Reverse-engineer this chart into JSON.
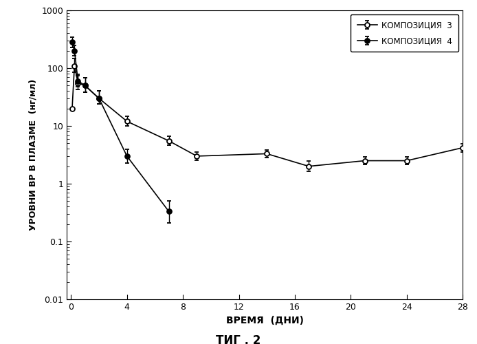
{
  "title": "ΤИГ . 2",
  "xlabel": "ВРЕМЯ  (ДНИ)",
  "ylabel": "УРОВНИ ВР В ПЛАЗМЕ  (нг/мл)",
  "comp3_x": [
    0.083,
    0.25,
    0.5,
    1,
    2,
    4,
    7,
    9,
    14,
    17,
    21,
    24,
    28
  ],
  "comp3_y": [
    20,
    110,
    55,
    50,
    30,
    12,
    5.5,
    3.0,
    3.3,
    2.0,
    2.5,
    2.5,
    4.2
  ],
  "comp3_yerr_lo": [
    0,
    25,
    12,
    12,
    6,
    2.0,
    0.9,
    0.45,
    0.45,
    0.35,
    0.35,
    0.35,
    0.65
  ],
  "comp3_yerr_hi": [
    0,
    35,
    18,
    18,
    10,
    2.5,
    1.1,
    0.55,
    0.55,
    0.45,
    0.45,
    0.45,
    0.75
  ],
  "comp4_x": [
    0.083,
    0.25,
    0.5,
    1,
    2,
    4,
    7
  ],
  "comp4_y": [
    280,
    200,
    60,
    50,
    30,
    3.0,
    0.33
  ],
  "comp4_yerr_lo": [
    55,
    35,
    12,
    12,
    6,
    0.7,
    0.12
  ],
  "comp4_yerr_hi": [
    65,
    45,
    18,
    18,
    10,
    0.9,
    0.18
  ],
  "legend1": "КОМПОЗИЦИЯ  3",
  "legend2": "КОМПОЗИЦИЯ  4",
  "ylim_min": 0.01,
  "ylim_max": 1000,
  "xlim_min": -0.3,
  "xlim_max": 28,
  "xticks": [
    0,
    4,
    8,
    12,
    16,
    20,
    24,
    28
  ],
  "color": "#000000",
  "bg_color": "#ffffff"
}
